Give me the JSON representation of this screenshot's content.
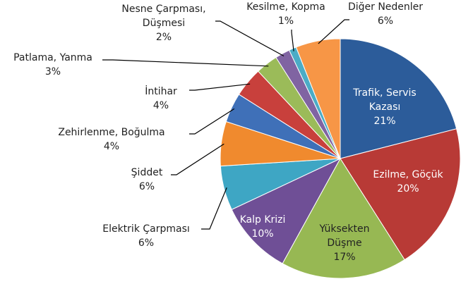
{
  "chart_data": {
    "type": "pie",
    "categories": [
      "Trafik, Servis Kazası",
      "Ezilme, Göçük",
      "Yüksekten Düşme",
      "Kalp Krizi",
      "Elektrik Çarpması",
      "Şiddet",
      "Zehirlenme, Boğulma",
      "İntihar",
      "Patlama, Yanma",
      "Nesne Çarpması, Düşmesi",
      "Kesilme, Kopma",
      "Diğer Nedenler"
    ],
    "values": [
      21,
      20,
      17,
      10,
      6,
      6,
      4,
      4,
      3,
      2,
      1,
      6
    ],
    "value_labels": [
      "21%",
      "20%",
      "17%",
      "10%",
      "6%",
      "6%",
      "4%",
      "4%",
      "3%",
      "2%",
      "1%",
      "6%"
    ],
    "colors": [
      "#2c5c9a",
      "#b83a36",
      "#97b853",
      "#6f4f96",
      "#3ea6c4",
      "#f08a2e",
      "#3f70b8",
      "#c8403c",
      "#9bbb59",
      "#8064a2",
      "#4bacc6",
      "#f79646"
    ]
  }
}
